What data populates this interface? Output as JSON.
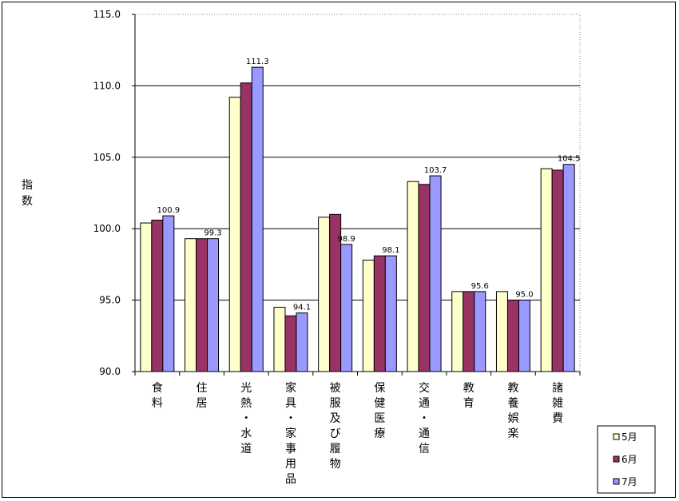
{
  "chart_data": {
    "type": "bar",
    "ylabel": "指数",
    "ylim": [
      90,
      115
    ],
    "yticks": [
      "90.0",
      "95.0",
      "100.0",
      "105.0",
      "110.0",
      "115.0"
    ],
    "grid": true,
    "legend_position": "bottom-right",
    "categories": [
      "食料",
      "住居",
      "光熱・水道",
      "家具・家事用品",
      "被服及び履物",
      "保健医療",
      "交通・通信",
      "教育",
      "教養娯楽",
      "諸雑費"
    ],
    "series": [
      {
        "name": "5月",
        "color": "#FFFFCC",
        "values": [
          100.4,
          99.3,
          109.2,
          94.5,
          100.8,
          97.8,
          103.3,
          95.6,
          95.6,
          104.2
        ]
      },
      {
        "name": "6月",
        "color": "#993366",
        "values": [
          100.6,
          99.3,
          110.2,
          93.9,
          101.0,
          98.1,
          103.1,
          95.6,
          95.0,
          104.1
        ]
      },
      {
        "name": "7月",
        "color": "#9999FF",
        "values": [
          100.9,
          99.3,
          111.3,
          94.1,
          98.9,
          98.1,
          103.7,
          95.6,
          95.0,
          104.5
        ]
      }
    ],
    "data_labels": {
      "series_index": 2,
      "values": [
        "100.9",
        "99.3",
        "111.3",
        "94.1",
        "98.9",
        "98.1",
        "103.7",
        "95.6",
        "95.0",
        "104.5"
      ]
    }
  }
}
